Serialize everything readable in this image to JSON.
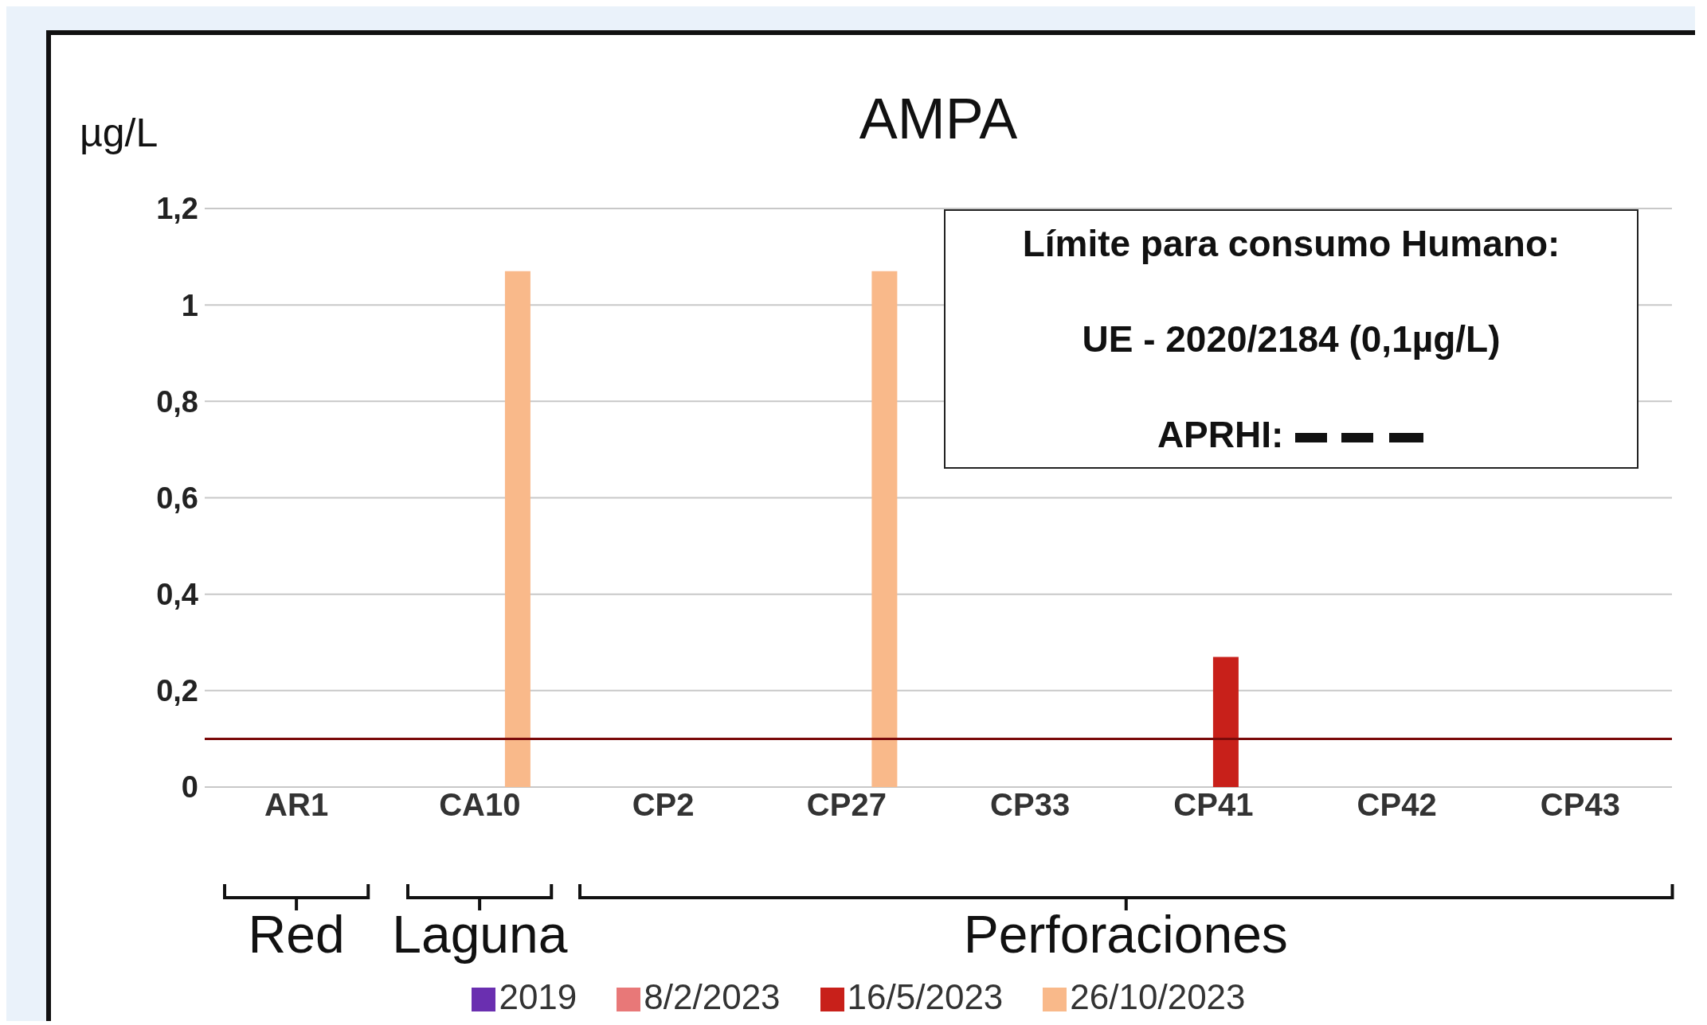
{
  "chart_data": {
    "type": "bar",
    "title": "AMPA",
    "ylabel": "µg/L",
    "categories": [
      "AR1",
      "CA10",
      "CP2",
      "CP27",
      "CP33",
      "CP41",
      "CP42",
      "CP43"
    ],
    "series": [
      {
        "name": "2019",
        "color": "#6a2fb0",
        "values": [
          null,
          null,
          null,
          null,
          null,
          null,
          null,
          null
        ]
      },
      {
        "name": "8/2/2023",
        "color": "#e87878",
        "values": [
          null,
          null,
          null,
          null,
          null,
          null,
          null,
          null
        ]
      },
      {
        "name": "16/5/2023",
        "color": "#c8201a",
        "values": [
          null,
          null,
          null,
          null,
          null,
          0.27,
          null,
          null
        ]
      },
      {
        "name": "26/10/2023",
        "color": "#f9b98a",
        "values": [
          null,
          1.07,
          null,
          1.07,
          null,
          null,
          null,
          null
        ]
      }
    ],
    "ylim": [
      0,
      1.2
    ],
    "yticks": [
      0,
      {
        "value": 0.2,
        "label": "0,2"
      },
      {
        "value": 0.4,
        "label": "0,4"
      },
      {
        "value": 0.6,
        "label": "0,6"
      },
      {
        "value": 0.8,
        "label": "0,8"
      },
      1,
      {
        "value": 1.2,
        "label": "1,2"
      }
    ],
    "ref_lines": [
      {
        "axis": "y",
        "value": 0.1,
        "color": "#7a0a0a"
      }
    ],
    "annotations": [
      "Límite para consumo Humano:",
      "UE - 2020/2184 (0,1µg/L)",
      "APRHI:",
      "Red",
      "Laguna",
      "Perforaciones"
    ],
    "grid": "y",
    "legend": "bottom"
  }
}
